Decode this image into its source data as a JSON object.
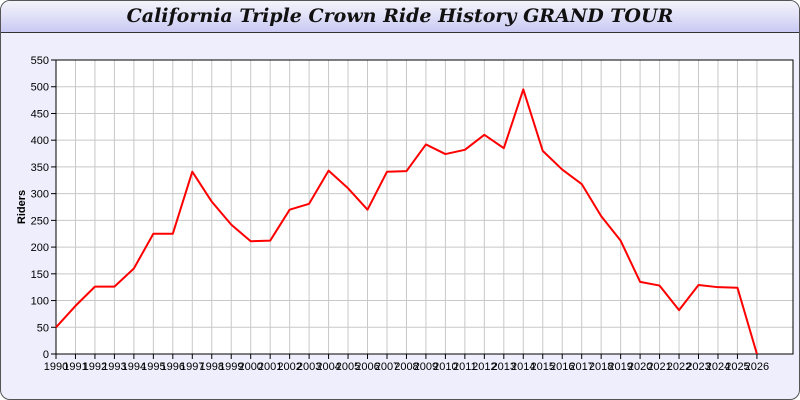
{
  "chart_data": {
    "type": "line",
    "title": "California Triple Crown Ride History GRAND TOUR",
    "xlabel": "",
    "ylabel": "Riders",
    "ylim": [
      0,
      550
    ],
    "yticks": [
      0,
      50,
      100,
      150,
      200,
      250,
      300,
      350,
      400,
      450,
      500,
      550
    ],
    "grid": true,
    "line_color": "#ff0000",
    "categories": [
      "1990",
      "1991",
      "1992",
      "1993",
      "1994",
      "1995",
      "1996",
      "1997",
      "1998",
      "1999",
      "2000",
      "2001",
      "2002",
      "2003",
      "2004",
      "2005",
      "2006",
      "2007",
      "2008",
      "2009",
      "2010",
      "2011",
      "2012",
      "2013",
      "2014",
      "2015",
      "2016",
      "2017",
      "2018",
      "2019",
      "2020",
      "2021",
      "2022",
      "2023",
      "2024",
      "2025",
      "2026"
    ],
    "values": [
      50,
      90,
      126,
      126,
      160,
      225,
      225,
      341,
      285,
      242,
      211,
      212,
      270,
      281,
      343,
      310,
      270,
      341,
      342,
      392,
      374,
      382,
      410,
      385,
      495,
      380,
      345,
      318,
      258,
      212,
      135,
      128,
      82,
      129,
      125,
      124,
      0
    ]
  }
}
